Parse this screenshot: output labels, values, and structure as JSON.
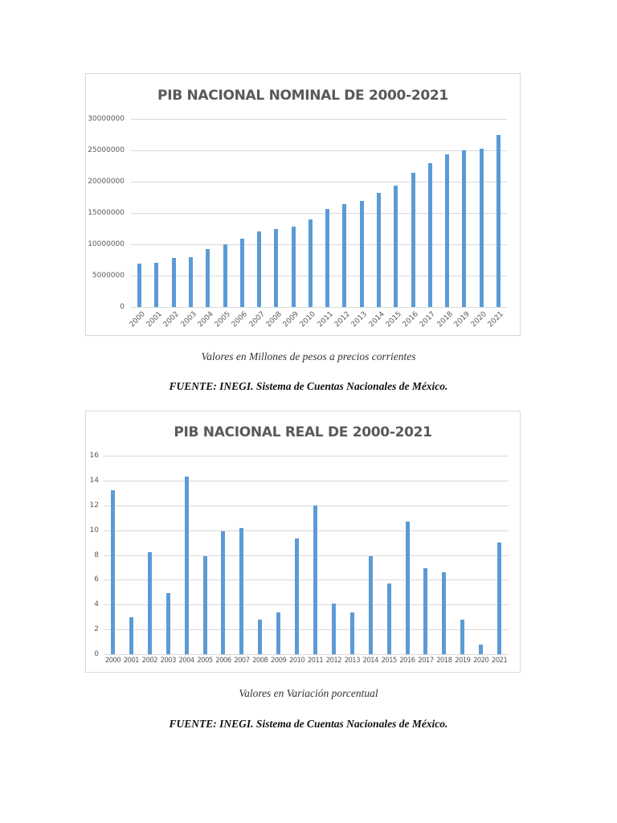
{
  "chart_data": [
    {
      "type": "bar",
      "title": "PIB NACIONAL NOMINAL DE 2000-2021",
      "xlabel": "",
      "ylabel": "",
      "ylim": [
        0,
        30000000
      ],
      "yticks": [
        "0",
        "5000000",
        "10000000",
        "15000000",
        "20000000",
        "25000000",
        "30000000"
      ],
      "grid": true,
      "legend": "none",
      "x_label_rotation": -45,
      "categories": [
        "2000",
        "2001",
        "2002",
        "2003",
        "2004",
        "2005",
        "2006",
        "2007",
        "2008",
        "2009",
        "2010",
        "2011",
        "2012",
        "2013",
        "2014",
        "2015",
        "2016",
        "2017",
        "2018",
        "2019",
        "2020",
        "2021"
      ],
      "values": [
        6900000,
        7100000,
        7800000,
        8000000,
        9200000,
        10000000,
        10900000,
        12100000,
        12400000,
        12800000,
        14000000,
        15700000,
        16400000,
        16900000,
        18200000,
        19300000,
        21400000,
        22900000,
        24300000,
        25000000,
        25300000,
        27500000
      ],
      "bar_color": "#5b9bd5"
    },
    {
      "type": "bar",
      "title": "PIB NACIONAL REAL DE 2000-2021",
      "xlabel": "",
      "ylabel": "",
      "ylim": [
        0,
        16
      ],
      "yticks": [
        "0",
        "2",
        "4",
        "6",
        "8",
        "10",
        "12",
        "14",
        "16"
      ],
      "grid": true,
      "legend": "none",
      "x_label_rotation": 0,
      "categories": [
        "2000",
        "2001",
        "2002",
        "2003",
        "2004",
        "2005",
        "2006",
        "2007",
        "2008",
        "2009",
        "2010",
        "2011",
        "2012",
        "2013",
        "2014",
        "2015",
        "2016",
        "2017",
        "2018",
        "2019",
        "2020",
        "2021"
      ],
      "values": [
        13.2,
        3.0,
        8.2,
        4.9,
        14.3,
        7.9,
        9.9,
        10.2,
        2.8,
        3.4,
        9.3,
        12.0,
        4.1,
        3.4,
        7.9,
        5.7,
        10.7,
        6.9,
        6.6,
        2.8,
        0.8,
        9.0
      ],
      "bar_color": "#5b9bd5"
    }
  ],
  "captions": {
    "chart1_units": "Valores en Millones de pesos a precios corrientes",
    "chart1_source": "FUENTE: INEGI. Sistema de Cuentas Nacionales de México.",
    "chart2_units": "Valores en Variación porcentual",
    "chart2_source": "FUENTE: INEGI. Sistema de Cuentas Nacionales de México."
  },
  "colors": {
    "bar": "#5b9bd5",
    "gridline": "#d9d9d9",
    "axis_text": "#595959",
    "title_text": "#595959"
  }
}
